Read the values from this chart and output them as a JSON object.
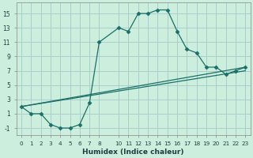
{
  "xlabel": "Humidex (Indice chaleur)",
  "bg_color": "#cceedd",
  "grid_color": "#aacccc",
  "line_color": "#1a7068",
  "xlim": [
    -0.5,
    23.5
  ],
  "ylim": [
    -2,
    16.5
  ],
  "yticks": [
    -1,
    1,
    3,
    5,
    7,
    9,
    11,
    13,
    15
  ],
  "xticks": [
    0,
    1,
    2,
    3,
    4,
    5,
    6,
    7,
    8,
    10,
    11,
    12,
    13,
    14,
    15,
    16,
    17,
    18,
    19,
    20,
    21,
    22,
    23
  ],
  "series1_x": [
    0,
    1,
    2,
    3,
    4,
    5,
    6,
    7,
    8,
    10,
    11,
    12,
    13,
    14,
    15,
    16,
    17,
    18,
    19,
    20,
    21,
    22,
    23
  ],
  "series1_y": [
    2,
    1,
    1,
    -0.5,
    -1,
    -1,
    -0.5,
    2.5,
    11,
    13,
    12.5,
    15,
    15,
    15.5,
    15.5,
    12.5,
    10,
    9.5,
    7.5,
    7.5,
    6.5,
    7,
    7.5
  ],
  "series2_x": [
    0,
    23
  ],
  "series2_y": [
    2,
    7.5
  ],
  "series3_x": [
    0,
    23
  ],
  "series3_y": [
    2,
    7.0
  ]
}
